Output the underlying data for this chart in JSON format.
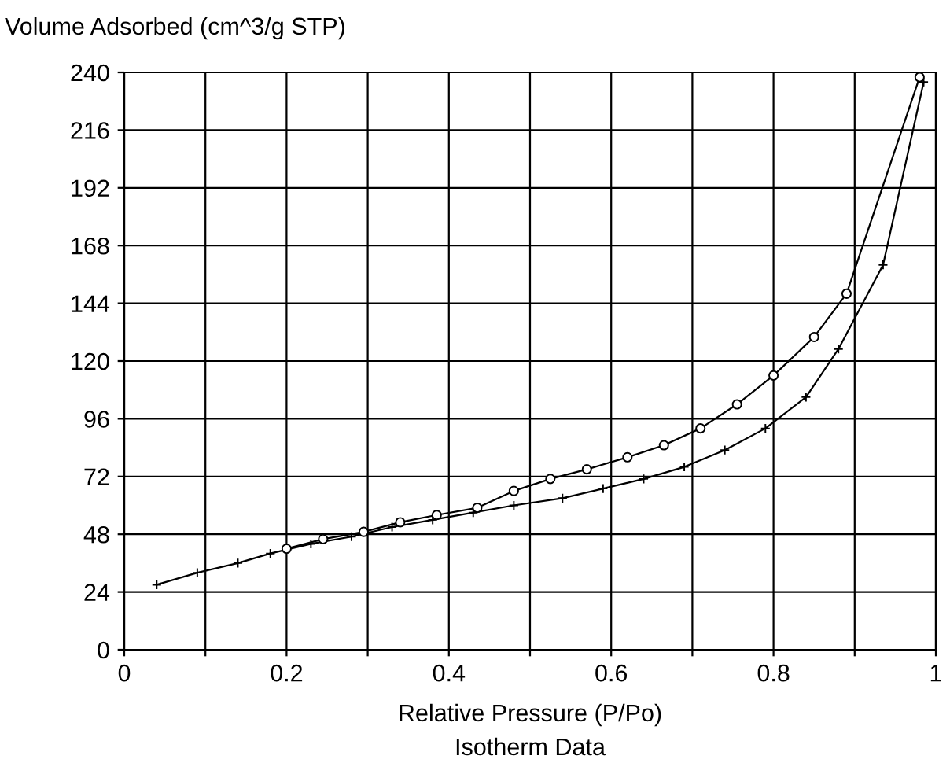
{
  "chart_data": {
    "type": "line",
    "ylabel": "Volume Adsorbed (cm^3/g STP)",
    "xlabel": "Relative Pressure (P/Po)",
    "annotations": [
      "Isotherm Data"
    ],
    "xlim": [
      0,
      1
    ],
    "ylim": [
      0,
      240
    ],
    "xticks": [
      0,
      {
        "value": 0.1,
        "label": null
      },
      0.2,
      {
        "value": 0.3,
        "label": null
      },
      0.4,
      {
        "value": 0.5,
        "label": null
      },
      0.6,
      {
        "value": 0.7,
        "label": null
      },
      0.8,
      {
        "value": 0.9,
        "label": null
      },
      1
    ],
    "yticks": [
      0,
      24,
      48,
      72,
      96,
      120,
      144,
      168,
      192,
      216,
      240
    ],
    "grid": true,
    "legend": false,
    "series": [
      {
        "color": "#000000",
        "marker": "cross",
        "x": [
          0.04,
          0.09,
          0.14,
          0.18,
          0.23,
          0.28,
          0.33,
          0.38,
          0.43,
          0.48,
          0.54,
          0.59,
          0.64,
          0.69,
          0.74,
          0.79,
          0.84,
          0.88,
          0.935,
          0.985
        ],
        "values": [
          27,
          32,
          36,
          40,
          44,
          47,
          51,
          54,
          57,
          60,
          63,
          67,
          71,
          76,
          83,
          92,
          105,
          125,
          160,
          236
        ]
      },
      {
        "color": "#000000",
        "marker": "circle",
        "x": [
          0.98,
          0.89,
          0.85,
          0.8,
          0.755,
          0.71,
          0.665,
          0.62,
          0.57,
          0.525,
          0.48,
          0.435,
          0.385,
          0.34,
          0.295,
          0.245,
          0.2
        ],
        "values": [
          238,
          148,
          130,
          114,
          102,
          92,
          85,
          80,
          75,
          71,
          66,
          59,
          56,
          53,
          49,
          46,
          42
        ]
      }
    ]
  }
}
